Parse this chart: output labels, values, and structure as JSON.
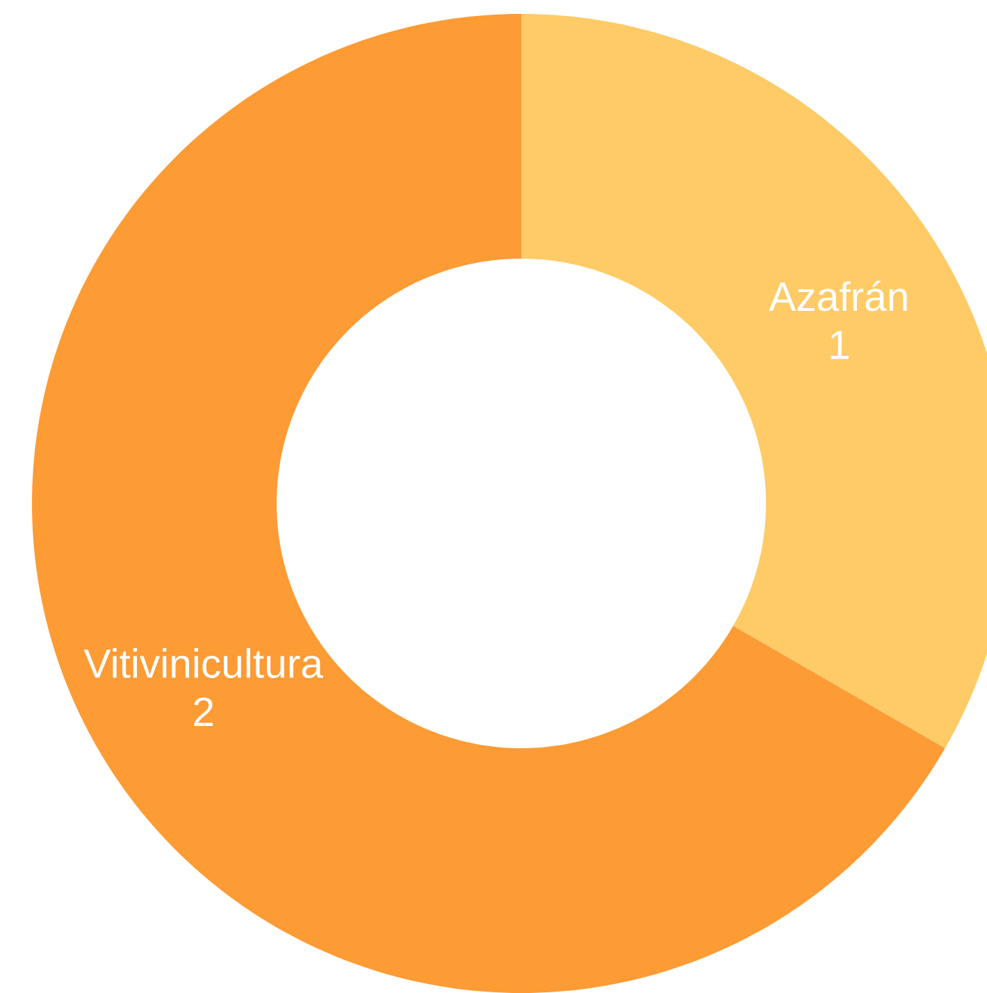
{
  "chart_data": {
    "type": "donut",
    "categories": [
      "Azafrán",
      "Vitivinicultura"
    ],
    "values": [
      1,
      2
    ],
    "colors": [
      "#fecb66",
      "#fd9b35"
    ],
    "data_labels": true
  }
}
